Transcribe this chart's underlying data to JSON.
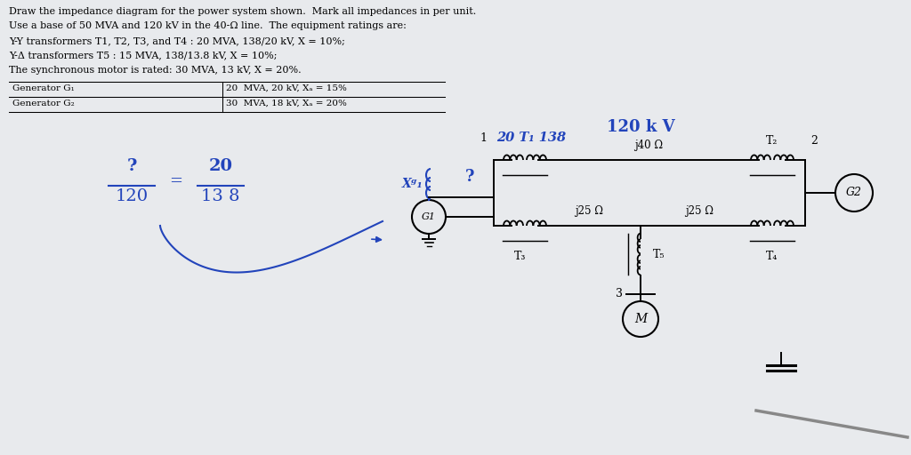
{
  "bg_color": "#e8eaed",
  "text_color": "#000000",
  "blue_color": "#2244bb",
  "title_lines": [
    "Draw the impedance diagram for the power system shown.  Mark all impedances in per unit.",
    "Use a base of 50 MVA and 120 kV in the 40-Ω line.  The equipment ratings are:",
    "Y-Y transformers T1, T2, T3, and T4 : 20 MVA, 138/20 kV, X = 10%;",
    "Y-Δ transformers T5 : 15 MVA, 138/13.8 kV, X = 10%;",
    "The synchronous motor is rated: 30 MVA, 13 kV, X = 20%."
  ],
  "row0_left": "Generator G₁",
  "row0_right": "20  MVA, 20 kV, Xₐ = 15%",
  "row1_left": "Generator G₂",
  "row1_right": "30  MVA, 18 kV, Xₐ = 20%",
  "label_1": "1",
  "label_2": "2",
  "label_3": "3",
  "label_20_T1_138": "20 T₁ 138",
  "label_120kV": "120 k V",
  "label_T2": "T₂",
  "label_T3": "T₃",
  "label_T4": "T₄",
  "label_T5": "T₅",
  "label_j40": "j40 Ω",
  "label_j25a": "j25 Ω",
  "label_j25b": "j25 Ω",
  "label_qmark": "?",
  "label_G1": "G1",
  "label_G2": "G2",
  "label_M": "M",
  "label_Xg1": "Xᵍ₁",
  "frac_num1": "?",
  "frac_den1": "120",
  "frac_num2": "20",
  "frac_den2": "13 8"
}
